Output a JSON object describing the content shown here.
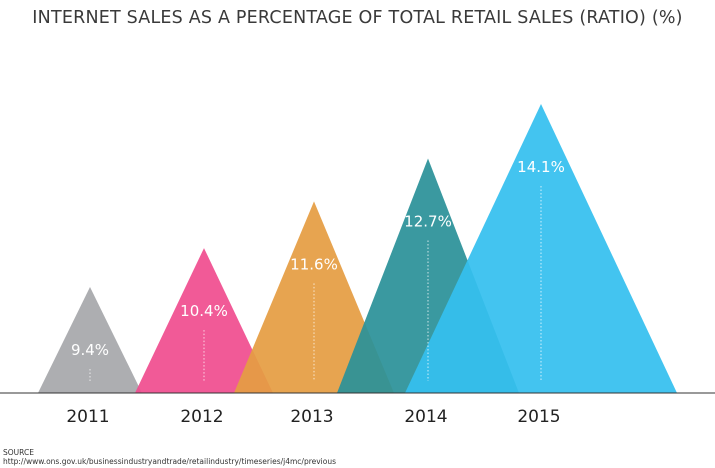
{
  "chart_data": {
    "type": "area",
    "title": "INTERNET SALES AS A PERCENTAGE OF TOTAL RETAIL SALES (RATIO) (%)",
    "categories": [
      "2011",
      "2012",
      "2013",
      "2014",
      "2015"
    ],
    "values": [
      9.4,
      10.4,
      11.6,
      12.7,
      14.1
    ],
    "labels": [
      "9.4%",
      "10.4%",
      "11.6%",
      "12.7%",
      "14.1%"
    ],
    "colors": [
      "#a7a8ab",
      "#f04e8f",
      "#e59d43",
      "#2b9199",
      "#35bfef"
    ],
    "shape": "overlapping triangles",
    "grid": false,
    "legend": "none"
  },
  "source": {
    "label": "SOURCE",
    "url": "http://www.ons.gov.uk/businessindustryandtrade/retailindustry/timeseries/j4mc/previous"
  }
}
